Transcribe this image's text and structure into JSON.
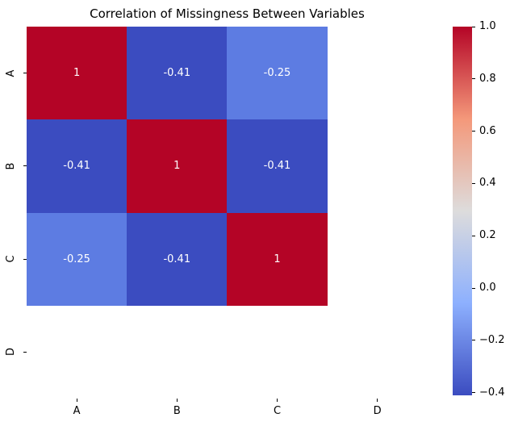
{
  "chart_data": {
    "type": "heatmap",
    "title": "Correlation of Missingness Between Variables",
    "x_categories": [
      "A",
      "B",
      "C",
      "D"
    ],
    "y_categories": [
      "A",
      "B",
      "C",
      "D"
    ],
    "matrix": [
      [
        1,
        -0.41,
        -0.25,
        null
      ],
      [
        -0.41,
        1,
        -0.41,
        null
      ],
      [
        -0.25,
        -0.41,
        1,
        null
      ],
      [
        null,
        null,
        null,
        null
      ]
    ],
    "annotations": [
      [
        "1",
        "-0.41",
        "-0.25",
        null
      ],
      [
        "-0.41",
        "1",
        "-0.41",
        null
      ],
      [
        "-0.25",
        "-0.41",
        "1",
        null
      ],
      [
        null,
        null,
        null,
        null
      ]
    ],
    "cell_colors": [
      [
        "#b40426",
        "#3b4cc0",
        "#5d7ce2",
        null
      ],
      [
        "#3b4cc0",
        "#b40426",
        "#3b4cc0",
        null
      ],
      [
        "#5d7ce2",
        "#3b4cc0",
        "#b40426",
        null
      ],
      [
        null,
        null,
        null,
        null
      ]
    ],
    "annotation_text_color": "#ffffff",
    "colormap": "coolwarm",
    "grid": false,
    "legend_position": "right",
    "colorbar": {
      "vmin": -0.41,
      "vmax": 1.0,
      "tick_values": [
        1.0,
        0.8,
        0.6,
        0.4,
        0.2,
        0.0,
        -0.2,
        -0.4
      ],
      "tick_labels": [
        "1.0",
        "0.8",
        "0.6",
        "0.4",
        "0.2",
        "0.0",
        "−0.2",
        "−0.4"
      ],
      "gradient_stops": [
        {
          "pos": 0.0,
          "color": "#b40426"
        },
        {
          "pos": 0.25,
          "color": "#f4987a"
        },
        {
          "pos": 0.5,
          "color": "#dddcdc"
        },
        {
          "pos": 0.75,
          "color": "#8db0fe"
        },
        {
          "pos": 1.0,
          "color": "#3b4cc0"
        }
      ]
    }
  }
}
